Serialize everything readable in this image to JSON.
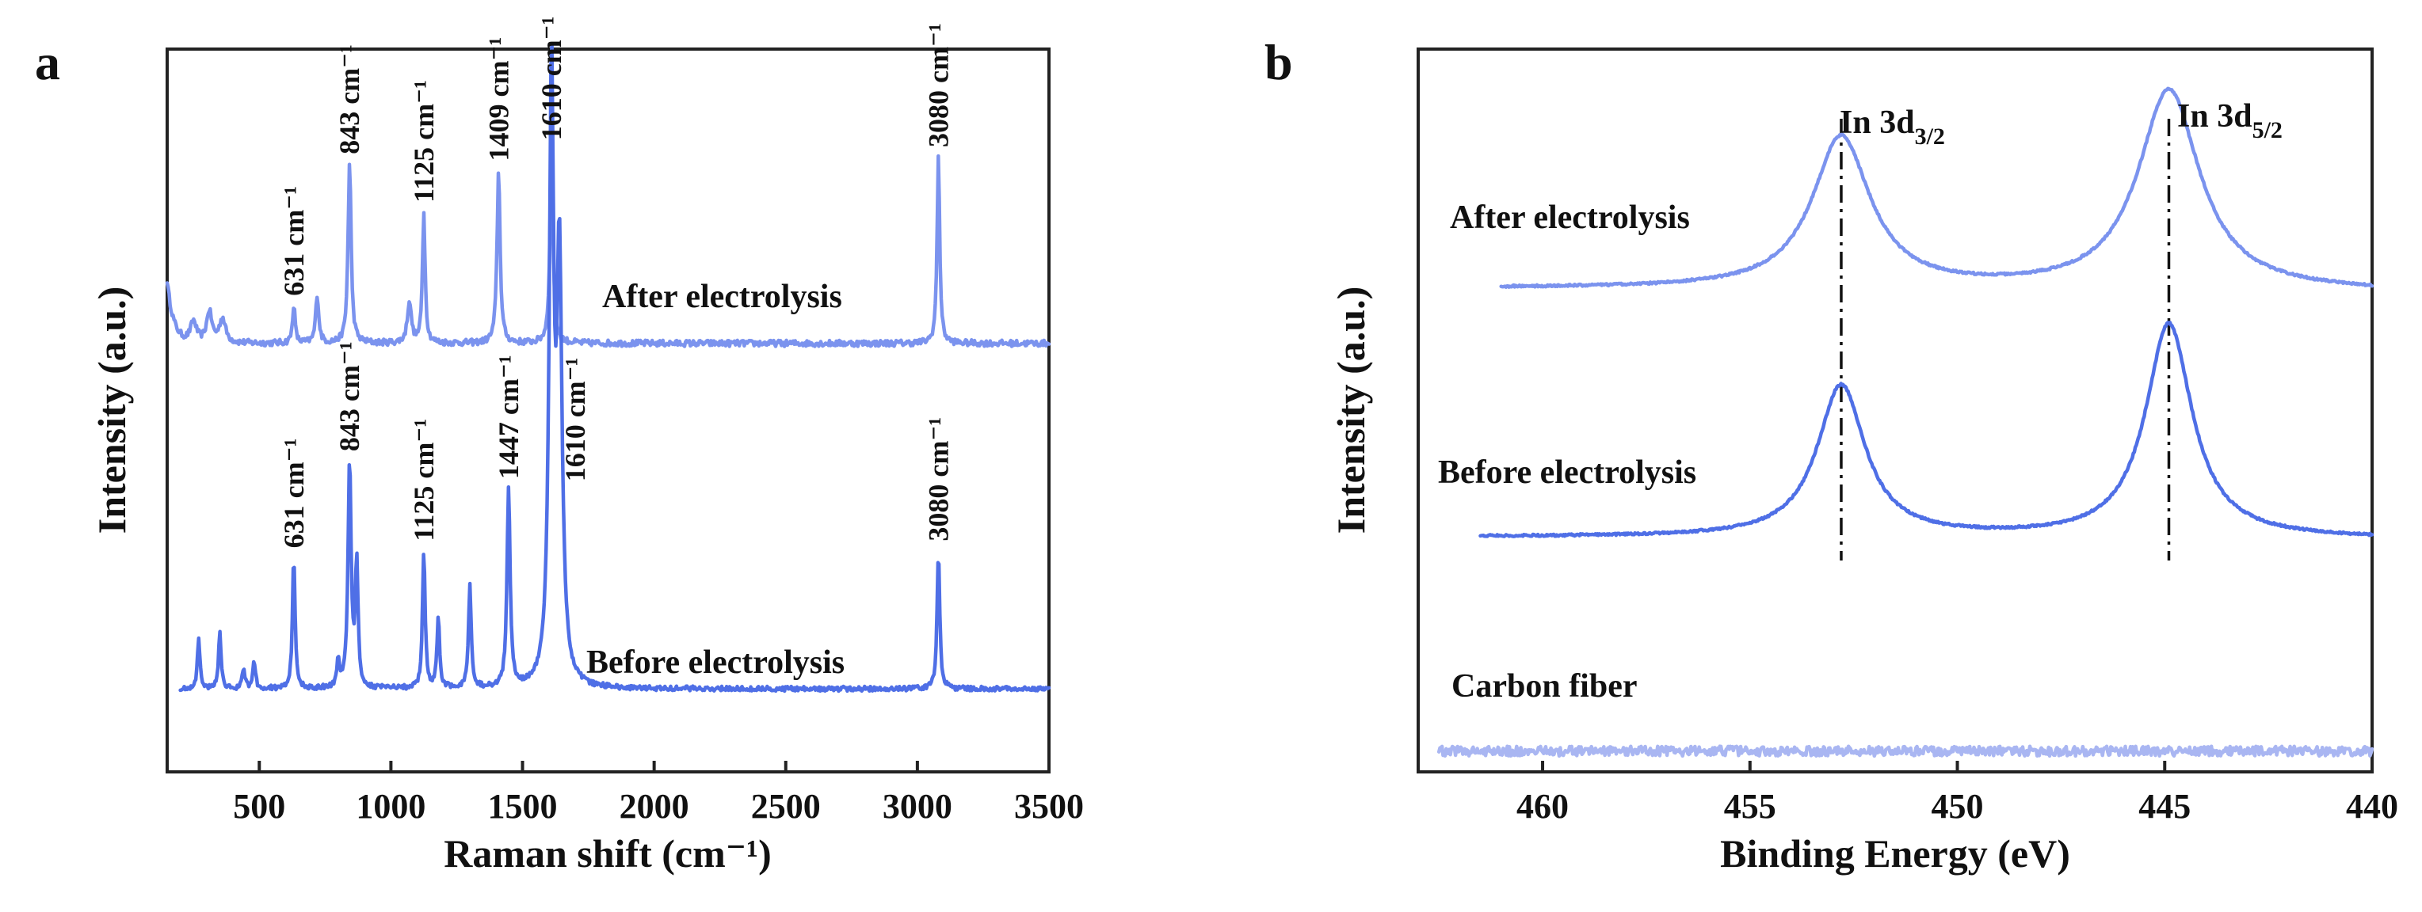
{
  "colors": {
    "after": "#7b93ee",
    "before": "#4f6fe6",
    "carbon": "#a9b6f2",
    "axis": "#222222"
  },
  "chart_data": [
    {
      "panel": "a",
      "type": "line",
      "xlabel": "Raman shift (cm⁻¹)",
      "ylabel": "Intensity (a.u.)",
      "xlim": [
        150,
        3500
      ],
      "ylim": [
        0,
        100
      ],
      "xticks": [
        500,
        1000,
        1500,
        2000,
        2500,
        3000,
        3500
      ],
      "y_tick_labels": false,
      "series": [
        {
          "name": "After electrolysis",
          "color_key": "after",
          "baseline": 62,
          "noise": 0.45,
          "x_range": [
            150,
            3500
          ],
          "leading_edge": 9,
          "peaks": [
            {
              "x": 250,
              "h": 3,
              "w": 14
            },
            {
              "x": 310,
              "h": 4.5,
              "w": 12
            },
            {
              "x": 360,
              "h": 3.5,
              "w": 14
            },
            {
              "x": 631,
              "h": 5.5,
              "w": 6
            },
            {
              "x": 720,
              "h": 7,
              "w": 7
            },
            {
              "x": 843,
              "h": 26,
              "w": 7
            },
            {
              "x": 1070,
              "h": 6,
              "w": 9
            },
            {
              "x": 1125,
              "h": 19,
              "w": 6
            },
            {
              "x": 1409,
              "h": 25,
              "w": 7
            },
            {
              "x": 1610,
              "h": 28,
              "w": 7
            },
            {
              "x": 3080,
              "h": 27,
              "w": 6
            }
          ],
          "annotations": [
            {
              "x": 631,
              "label": "631 cm⁻¹"
            },
            {
              "x": 843,
              "label": "843 cm⁻¹"
            },
            {
              "x": 1125,
              "label": "1125 cm⁻¹"
            },
            {
              "x": 1409,
              "label": "1409 cm⁻¹"
            },
            {
              "x": 1610,
              "label": "1610 cm⁻¹"
            },
            {
              "x": 3080,
              "label": "3080 cm⁻¹"
            }
          ]
        },
        {
          "name": "Before electrolysis",
          "color_key": "before",
          "baseline": 12,
          "noise": 0.35,
          "x_range": [
            200,
            3500
          ],
          "peaks": [
            {
              "x": 270,
              "h": 7,
              "w": 6
            },
            {
              "x": 350,
              "h": 8,
              "w": 6
            },
            {
              "x": 440,
              "h": 3,
              "w": 6
            },
            {
              "x": 480,
              "h": 4,
              "w": 6
            },
            {
              "x": 631,
              "h": 19,
              "w": 6
            },
            {
              "x": 800,
              "h": 4,
              "w": 6
            },
            {
              "x": 843,
              "h": 33,
              "w": 7
            },
            {
              "x": 870,
              "h": 18,
              "w": 6
            },
            {
              "x": 1125,
              "h": 20,
              "w": 6
            },
            {
              "x": 1180,
              "h": 10,
              "w": 6
            },
            {
              "x": 1300,
              "h": 15,
              "w": 6
            },
            {
              "x": 1447,
              "h": 29,
              "w": 7
            },
            {
              "x": 1610,
              "h": 86,
              "w": 10
            },
            {
              "x": 1640,
              "h": 60,
              "w": 12
            },
            {
              "x": 3080,
              "h": 20,
              "w": 6
            }
          ],
          "annotations": [
            {
              "x": 631,
              "label": "631 cm⁻¹"
            },
            {
              "x": 843,
              "label": "843 cm⁻¹"
            },
            {
              "x": 1125,
              "label": "1125 cm⁻¹"
            },
            {
              "x": 1447,
              "label": "1447 cm⁻¹"
            },
            {
              "x": 1610,
              "label": "1610 cm⁻¹"
            },
            {
              "x": 3080,
              "label": "3080 cm⁻¹"
            }
          ]
        }
      ]
    },
    {
      "panel": "b",
      "type": "line",
      "xlabel": "Binding Energy (eV)",
      "ylabel": "Intensity (a.u.)",
      "xlim": [
        463,
        440
      ],
      "ylim": [
        0,
        100
      ],
      "xticks": [
        460,
        455,
        450,
        445,
        440
      ],
      "y_tick_labels": false,
      "guides": [
        {
          "x": 452.8,
          "label_main": "In 3d",
          "label_sub": "3/2"
        },
        {
          "x": 444.9,
          "label_main": "In 3d",
          "label_sub": "5/2"
        }
      ],
      "series": [
        {
          "name": "After electrolysis",
          "color_key": "after",
          "baseline": 70,
          "noise": 0.15,
          "slope": -0.6,
          "x_range": [
            461,
            440
          ],
          "peaks": [
            {
              "x": 452.8,
              "h": 22,
              "w": 0.85
            },
            {
              "x": 444.9,
              "h": 29,
              "w": 0.9
            }
          ]
        },
        {
          "name": "Before electrolysis",
          "color_key": "before",
          "baseline": 34,
          "noise": 0.15,
          "slope": -0.3,
          "x_range": [
            461.5,
            440
          ],
          "peaks": [
            {
              "x": 452.8,
              "h": 22,
              "w": 0.7
            },
            {
              "x": 444.9,
              "h": 31,
              "w": 0.68
            }
          ]
        },
        {
          "name": "Carbon fiber",
          "color_key": "carbon",
          "baseline": 3,
          "noise": 0.7,
          "slope": 0,
          "x_range": [
            462.5,
            440
          ],
          "peaks": []
        }
      ]
    }
  ]
}
